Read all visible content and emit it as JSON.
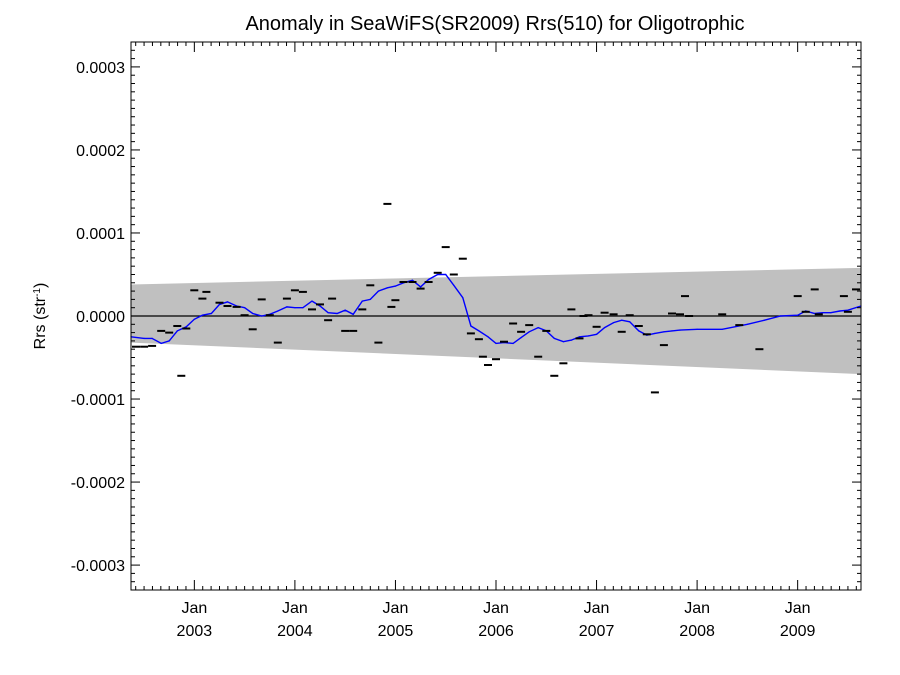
{
  "chart_data": {
    "type": "line",
    "title": "Anomaly in SeaWiFS(SR2009) Rrs(510) for Oligotrophic",
    "ylabel": {
      "base": "Rrs (str",
      "sup": "-1",
      "close": ")"
    },
    "xlabel": "",
    "xlim": [
      2002.37,
      2009.63
    ],
    "ylim": [
      -0.00033,
      0.00033
    ],
    "yticks": [
      {
        "value": -0.0003,
        "label": "-0.0003"
      },
      {
        "value": -0.0002,
        "label": "-0.0002"
      },
      {
        "value": -0.0001,
        "label": "-0.0001"
      },
      {
        "value": 0.0,
        "label": "0.0000"
      },
      {
        "value": 0.0001,
        "label": "0.0001"
      },
      {
        "value": 0.0002,
        "label": "0.0002"
      },
      {
        "value": 0.0003,
        "label": "0.0003"
      }
    ],
    "xticks": [
      {
        "value": 2003.0,
        "month": "Jan",
        "year": "2003"
      },
      {
        "value": 2004.0,
        "month": "Jan",
        "year": "2004"
      },
      {
        "value": 2005.0,
        "month": "Jan",
        "year": "2005"
      },
      {
        "value": 2006.0,
        "month": "Jan",
        "year": "2006"
      },
      {
        "value": 2007.0,
        "month": "Jan",
        "year": "2007"
      },
      {
        "value": 2008.0,
        "month": "Jan",
        "year": "2008"
      },
      {
        "value": 2009.0,
        "month": "Jan",
        "year": "2009"
      }
    ],
    "zero_line": 0.0,
    "band": {
      "color": "#c0c0c0",
      "x": [
        2002.37,
        2009.63
      ],
      "upper": [
        3.8e-05,
        5.8e-05
      ],
      "lower": [
        -3.2e-05,
        -7e-05
      ]
    },
    "series": [
      {
        "style": "markers",
        "color": "#000000",
        "x": [
          2002.42,
          2002.5,
          2002.58,
          2002.67,
          2002.75,
          2002.83,
          2002.87,
          2002.92,
          2003.0,
          2003.08,
          2003.12,
          2003.25,
          2003.33,
          2003.42,
          2003.5,
          2003.58,
          2003.67,
          2003.75,
          2003.83,
          2003.92,
          2004.0,
          2004.08,
          2004.17,
          2004.25,
          2004.33,
          2004.37,
          2004.5,
          2004.58,
          2004.67,
          2004.75,
          2004.83,
          2004.92,
          2004.96,
          2005.0,
          2005.08,
          2005.17,
          2005.25,
          2005.33,
          2005.42,
          2005.5,
          2005.58,
          2005.67,
          2005.75,
          2005.83,
          2005.87,
          2005.92,
          2006.0,
          2006.08,
          2006.17,
          2006.25,
          2006.33,
          2006.42,
          2006.5,
          2006.58,
          2006.67,
          2006.75,
          2006.83,
          2006.87,
          2006.92,
          2007.0,
          2007.08,
          2007.17,
          2007.25,
          2007.33,
          2007.42,
          2007.5,
          2007.58,
          2007.67,
          2007.75,
          2007.83,
          2007.88,
          2007.92,
          2008.25,
          2008.42,
          2008.62,
          2009.0,
          2009.08,
          2009.17,
          2009.21,
          2009.46,
          2009.5,
          2009.58
        ],
        "y": [
          -3.7e-05,
          -3.7e-05,
          -3.6e-05,
          -1.8e-05,
          -2e-05,
          -1.2e-05,
          -7.2e-05,
          -1.5e-05,
          3.1e-05,
          2.1e-05,
          2.9e-05,
          1.6e-05,
          1.2e-05,
          1.1e-05,
          1e-06,
          -1.6e-05,
          2e-05,
          1e-06,
          -3.2e-05,
          2.1e-05,
          3.1e-05,
          2.9e-05,
          8e-06,
          1.4e-05,
          -5e-06,
          2.1e-05,
          -1.8e-05,
          -1.8e-05,
          8e-06,
          3.7e-05,
          -3.2e-05,
          0.000135,
          1.1e-05,
          1.9e-05,
          4.1e-05,
          4.1e-05,
          3.3e-05,
          4.1e-05,
          5.2e-05,
          8.3e-05,
          5e-05,
          6.9e-05,
          -2.1e-05,
          -2.8e-05,
          -4.9e-05,
          -5.9e-05,
          -5.2e-05,
          -3.1e-05,
          -9e-06,
          -1.9e-05,
          -1.1e-05,
          -4.9e-05,
          -1.8e-05,
          -7.2e-05,
          -5.7e-05,
          8e-06,
          -2.7e-05,
          0.0,
          1e-06,
          -1.3e-05,
          4e-06,
          2e-06,
          -1.9e-05,
          1e-06,
          -1.2e-05,
          -2.2e-05,
          -9.2e-05,
          -3.5e-05,
          3e-06,
          2e-06,
          2.4e-05,
          0.0,
          2e-06,
          -1.1e-05,
          -4e-05,
          2.4e-05,
          5e-06,
          3.2e-05,
          2e-06,
          2.4e-05,
          5e-06,
          3.2e-05
        ]
      },
      {
        "style": "line",
        "color": "#0000ff",
        "x": [
          2002.37,
          2002.5,
          2002.58,
          2002.67,
          2002.75,
          2002.83,
          2002.92,
          2003.0,
          2003.08,
          2003.17,
          2003.25,
          2003.33,
          2003.42,
          2003.5,
          2003.58,
          2003.67,
          2003.75,
          2003.83,
          2003.92,
          2004.0,
          2004.08,
          2004.17,
          2004.25,
          2004.33,
          2004.42,
          2004.5,
          2004.58,
          2004.67,
          2004.75,
          2004.83,
          2004.92,
          2005.0,
          2005.08,
          2005.17,
          2005.25,
          2005.33,
          2005.42,
          2005.5,
          2005.58,
          2005.67,
          2005.75,
          2005.83,
          2005.92,
          2006.0,
          2006.08,
          2006.17,
          2006.25,
          2006.33,
          2006.42,
          2006.5,
          2006.58,
          2006.67,
          2006.75,
          2006.83,
          2006.92,
          2007.0,
          2007.08,
          2007.17,
          2007.25,
          2007.33,
          2007.42,
          2007.5,
          2007.58,
          2007.67,
          2007.75,
          2007.83,
          2008.0,
          2008.25,
          2008.5,
          2008.67,
          2008.83,
          2009.0,
          2009.08,
          2009.17,
          2009.25,
          2009.33,
          2009.42,
          2009.5,
          2009.63
        ],
        "y": [
          -2.5e-05,
          -2.7e-05,
          -2.7e-05,
          -3.3e-05,
          -3e-05,
          -1.8e-05,
          -1.3e-05,
          -4e-06,
          1e-06,
          3e-06,
          1.4e-05,
          1.7e-05,
          1.2e-05,
          1e-05,
          3e-06,
          0.0,
          2e-06,
          6e-06,
          1.1e-05,
          1e-05,
          1e-05,
          1.8e-05,
          1.2e-05,
          4e-06,
          3e-06,
          7e-06,
          2e-06,
          1.8e-05,
          2e-05,
          3e-05,
          3.4e-05,
          3.6e-05,
          4e-05,
          4.3e-05,
          3.5e-05,
          4.4e-05,
          5e-05,
          5e-05,
          3.7e-05,
          2.2e-05,
          -1.2e-05,
          -1.8e-05,
          -2.5e-05,
          -3.3e-05,
          -3.2e-05,
          -3.3e-05,
          -2.6e-05,
          -1.9e-05,
          -1.4e-05,
          -1.8e-05,
          -2.7e-05,
          -3.1e-05,
          -2.9e-05,
          -2.5e-05,
          -2.4e-05,
          -2.2e-05,
          -1.4e-05,
          -8e-06,
          -5e-06,
          -7e-06,
          -1.8e-05,
          -2.3e-05,
          -2.1e-05,
          -1.9e-05,
          -1.8e-05,
          -1.7e-05,
          -1.6e-05,
          -1.6e-05,
          -1e-05,
          -5e-06,
          0.0,
          1e-06,
          6e-06,
          3e-06,
          4e-06,
          4e-06,
          6e-06,
          7e-06,
          1.2e-05
        ]
      }
    ]
  }
}
